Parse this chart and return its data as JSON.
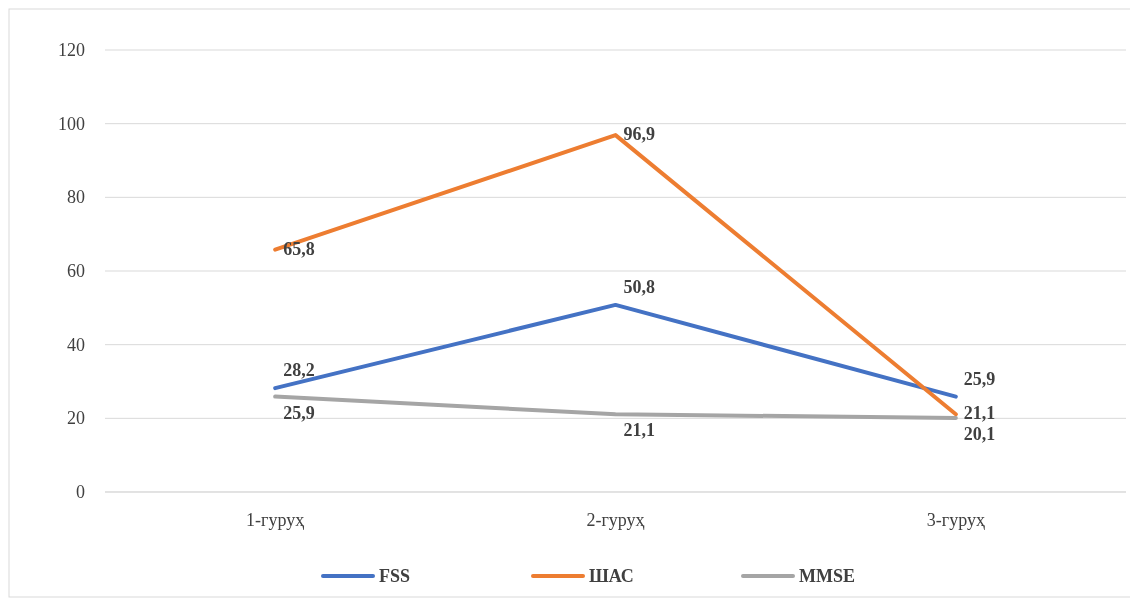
{
  "chart_data": {
    "type": "line",
    "categories": [
      "1-гуруҳ",
      "2-гуруҳ",
      "3-гуруҳ"
    ],
    "series": [
      {
        "name": "FSS",
        "color": "#4472c4",
        "values": [
          28.2,
          50.8,
          25.9
        ],
        "value_labels": [
          "28,2",
          "50,8",
          "25,9"
        ]
      },
      {
        "name": "ШАС",
        "color": "#ed7d31",
        "values": [
          65.8,
          96.9,
          21.1
        ],
        "value_labels": [
          "65,8",
          "96,9",
          "21,1"
        ]
      },
      {
        "name": "MMSE",
        "color": "#a5a5a5",
        "values": [
          25.9,
          21.1,
          20.1
        ],
        "value_labels": [
          "25,9",
          "21,1",
          "20,1"
        ]
      }
    ],
    "ylim": [
      0,
      120
    ],
    "yticks": [
      0,
      20,
      40,
      60,
      80,
      100,
      120
    ],
    "grid": "y",
    "legend": "bottom",
    "marker": "none"
  }
}
